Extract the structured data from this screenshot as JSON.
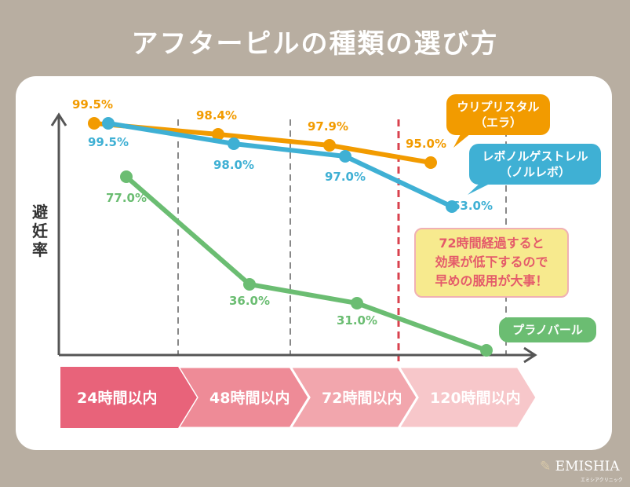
{
  "title": "アフターピルの種類の選び方",
  "y_label": "避妊率",
  "note": [
    "72時間経過すると",
    "効果が低下するので",
    "早めの服用が大事！"
  ],
  "logo": {
    "name": "EMISHIA",
    "sub": "エミシアクリニック"
  },
  "colors": {
    "orange": "#f29b00",
    "blue": "#3fb0d4",
    "green": "#6bbd72",
    "accent_line": "#d9424e",
    "background": "#b8aea1"
  },
  "chart_data": {
    "type": "line",
    "title": "アフターピルの種類の選び方",
    "ylabel": "避妊率",
    "categories": [
      "24時間以内",
      "48時間以内",
      "72時間以内",
      "120時間以内"
    ],
    "series": [
      {
        "name": "ウリプリスタル（エラ）",
        "name_lines": [
          "ウリプリスタル",
          "（エラ）"
        ],
        "color": "#f29b00",
        "values": [
          99.5,
          98.4,
          97.9,
          95.0
        ],
        "labels": [
          "99.5%",
          "98.4%",
          "97.9%",
          "95.0%"
        ]
      },
      {
        "name": "レボノルゲストレル（ノルレボ）",
        "name_lines": [
          "レボノルゲストレル",
          "（ノルレボ）"
        ],
        "color": "#3fb0d4",
        "values": [
          99.5,
          98.0,
          97.0,
          63.0
        ],
        "labels": [
          "99.5%",
          "98.0%",
          "97.0%",
          "63.0%"
        ]
      },
      {
        "name": "プラノバール",
        "name_lines": [
          "プラノバール"
        ],
        "color": "#6bbd72",
        "values": [
          77.0,
          36.0,
          31.0,
          null
        ],
        "labels": [
          "77.0%",
          "36.0%",
          "31.0%",
          ""
        ]
      }
    ],
    "grid": "vertical dashed at period boundaries",
    "highlight": "72時間 boundary in red dashed line"
  }
}
